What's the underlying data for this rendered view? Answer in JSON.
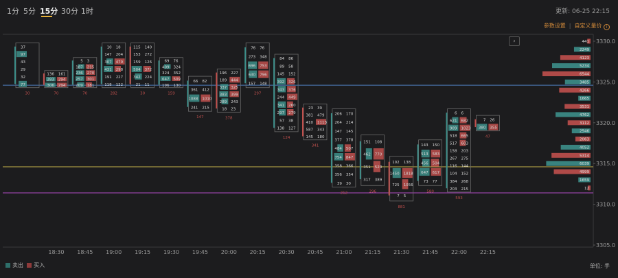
{
  "timeframes": [
    {
      "label": "1分",
      "active": false
    },
    {
      "label": "5分",
      "active": false
    },
    {
      "label": "15分",
      "active": true
    },
    {
      "label": "30分",
      "active": false
    },
    {
      "label": "1时",
      "active": false
    }
  ],
  "update_label": "更新: 06-25 22:15",
  "settings_link": "参数设置",
  "custom_volume_link": "自定义量价",
  "legend": {
    "sell_label": "卖出",
    "buy_label": "买入",
    "sell_color": "#2e6f6a",
    "buy_color": "#8e3a3a"
  },
  "unit_label": "单位: 手",
  "colors": {
    "sell": "#3d8f8a",
    "buy": "#c0504d",
    "blue_line": "#4f7fc0",
    "yellow_line": "#c6b54a",
    "purple_line": "#b24bc6"
  },
  "chart_data": {
    "type": "footprint",
    "title": "",
    "xlabel": "",
    "ylabel": "",
    "ylim": [
      3305.0,
      3330.0
    ],
    "y_ticks": [
      "3330.0",
      "3325.0",
      "3320.0",
      "3315.0",
      "3310.0",
      "3305.0"
    ],
    "x_ticks": [
      "18:30",
      "18:45",
      "19:00",
      "19:15",
      "19:30",
      "19:45",
      "20:00",
      "20:15",
      "20:30",
      "20:45",
      "21:00",
      "21:15",
      "21:30",
      "21:45",
      "22:00",
      "22:15"
    ],
    "horizontal_lines": [
      {
        "price": 3324.6,
        "color": "blue"
      },
      {
        "price": 3314.6,
        "color": "yellow"
      },
      {
        "price": 3311.4,
        "color": "purple"
      }
    ],
    "bars": [
      {
        "time": "18:15",
        "delta": "30",
        "top": 3329.8,
        "bottom": 3324.3,
        "rows": [
          [
            "37",
            ""
          ],
          [
            "97",
            ""
          ],
          [
            "43",
            ""
          ],
          [
            "29",
            ""
          ],
          [
            "32",
            ""
          ],
          [
            "77",
            ""
          ]
        ]
      },
      {
        "time": "18:30",
        "delta": "70",
        "top": 3326.4,
        "bottom": 3324.3,
        "rows": [
          [
            "136",
            "161"
          ],
          [
            "283",
            "294"
          ],
          [
            "306",
            "294"
          ]
        ]
      },
      {
        "time": "18:45",
        "delta": "70",
        "top": 3328.0,
        "bottom": 3324.3,
        "rows": [
          [
            "5",
            "3"
          ],
          [
            "187",
            "215"
          ],
          [
            "236",
            "270"
          ],
          [
            "257",
            "301"
          ],
          [
            "209",
            "181"
          ]
        ]
      },
      {
        "time": "19:00",
        "delta": "282",
        "top": 3329.8,
        "bottom": 3324.3,
        "rows": [
          [
            "10",
            "18"
          ],
          [
            "147",
            "204"
          ],
          [
            "307",
            "479"
          ],
          [
            "431",
            "298"
          ],
          [
            "191",
            "227"
          ],
          [
            "118",
            "122"
          ]
        ]
      },
      {
        "time": "19:15",
        "delta": "30",
        "top": 3329.8,
        "bottom": 3324.3,
        "rows": [
          [
            "115",
            "140"
          ],
          [
            "153",
            "272"
          ],
          [
            "159",
            "126"
          ],
          [
            "504",
            "372"
          ],
          [
            "342",
            "224"
          ],
          [
            "21",
            "11"
          ]
        ]
      },
      {
        "time": "19:30",
        "delta": "159",
        "top": 3328.0,
        "bottom": 3324.3,
        "rows": [
          [
            "69",
            "76"
          ],
          [
            "409",
            "324"
          ],
          [
            "324",
            "352"
          ],
          [
            "647",
            "509"
          ],
          [
            "196",
            "130"
          ]
        ]
      },
      {
        "time": "19:45",
        "delta": "147",
        "top": 3325.7,
        "bottom": 3321.4,
        "rows": [
          [
            "66",
            "82"
          ],
          [
            "361",
            "412"
          ],
          [
            "1088",
            "1010"
          ],
          [
            "241",
            "215"
          ]
        ]
      },
      {
        "time": "20:00",
        "delta": "378",
        "top": 3326.6,
        "bottom": 3321.3,
        "rows": [
          [
            "196",
            "227"
          ],
          [
            "189",
            "444"
          ],
          [
            "337",
            "325"
          ],
          [
            "383",
            "399"
          ],
          [
            "289",
            "243"
          ],
          [
            "18",
            "23"
          ]
        ]
      },
      {
        "time": "20:15",
        "delta": "297",
        "top": 3329.8,
        "bottom": 3324.3,
        "rows": [
          [
            "76",
            "76"
          ],
          [
            "273",
            "348"
          ],
          [
            "696",
            "753"
          ],
          [
            "630",
            "796"
          ],
          [
            "157",
            "148"
          ]
        ]
      },
      {
        "time": "20:30",
        "delta": "124",
        "top": 3328.4,
        "bottom": 3318.9,
        "rows": [
          [
            "84",
            "86"
          ],
          [
            "89",
            "58"
          ],
          [
            "145",
            "152"
          ],
          [
            "392",
            "326"
          ],
          [
            "343",
            "376"
          ],
          [
            "244",
            "449"
          ],
          [
            "341",
            "260"
          ],
          [
            "297",
            "279"
          ],
          [
            "57",
            "38"
          ],
          [
            "138",
            "127"
          ]
        ]
      },
      {
        "time": "20:45",
        "delta": "341",
        "top": 3322.3,
        "bottom": 3317.9,
        "rows": [
          [
            "23",
            "39"
          ],
          [
            "381",
            "479"
          ],
          [
            "410",
            "1113"
          ],
          [
            "587",
            "343"
          ],
          [
            "145",
            "180"
          ]
        ]
      },
      {
        "time": "21:00",
        "delta": "212",
        "top": 3321.7,
        "bottom": 3312.1,
        "rows": [
          [
            "206",
            "170"
          ],
          [
            "204",
            "214"
          ],
          [
            "147",
            "145"
          ],
          [
            "377",
            "378"
          ],
          [
            "484",
            "507"
          ],
          [
            "754",
            "847"
          ],
          [
            "358",
            "366"
          ],
          [
            "356",
            "354"
          ],
          [
            "39",
            "30"
          ]
        ]
      },
      {
        "time": "21:15",
        "delta": "296",
        "top": 3318.5,
        "bottom": 3312.3,
        "rows": [
          [
            "151",
            "108"
          ],
          [
            "462",
            "770"
          ],
          [
            "351",
            "523"
          ],
          [
            "317",
            "389"
          ]
        ]
      },
      {
        "time": "21:30",
        "delta": "881",
        "top": 3315.9,
        "bottom": 3310.4,
        "rows": [
          [
            "102",
            "138"
          ],
          [
            "1450",
            "1818"
          ],
          [
            "725",
            "1056"
          ],
          [
            "7",
            "5"
          ]
        ]
      },
      {
        "time": "21:45",
        "delta": "580",
        "top": 3317.9,
        "bottom": 3312.3,
        "rows": [
          [
            "143",
            "150"
          ],
          [
            "513",
            "583"
          ],
          [
            "456",
            "504"
          ],
          [
            "647",
            "617"
          ],
          [
            "73",
            "77"
          ]
        ]
      },
      {
        "time": "22:00",
        "delta": "593",
        "top": 3321.7,
        "bottom": 3311.5,
        "rows": [
          [
            "6",
            "6"
          ],
          [
            "621",
            "682"
          ],
          [
            "989",
            "1023"
          ],
          [
            "518",
            "665"
          ],
          [
            "517",
            "603"
          ],
          [
            "158",
            "203"
          ],
          [
            "267",
            "275"
          ],
          [
            "116",
            "144"
          ],
          [
            "104",
            "152"
          ],
          [
            "384",
            "268"
          ],
          [
            "203",
            "215"
          ]
        ]
      },
      {
        "time": "22:15",
        "delta": "47",
        "top": 3320.9,
        "bottom": 3319.0,
        "rows": [
          [
            "7",
            "26"
          ],
          [
            "380",
            "355"
          ]
        ]
      }
    ],
    "volume_profile": [
      {
        "price": 3330.0,
        "value": "441"
      },
      {
        "price": 3329.0,
        "value": "2249"
      },
      {
        "price": 3328.0,
        "value": "4123"
      },
      {
        "price": 3327.0,
        "value": "5234"
      },
      {
        "price": 3326.0,
        "value": "6544"
      },
      {
        "price": 3325.0,
        "value": "3485"
      },
      {
        "price": 3324.0,
        "value": "4266"
      },
      {
        "price": 3323.0,
        "value": "1665"
      },
      {
        "price": 3322.0,
        "value": "3531"
      },
      {
        "price": 3321.0,
        "value": "4762"
      },
      {
        "price": 3320.0,
        "value": "3112"
      },
      {
        "price": 3319.0,
        "value": "2546"
      },
      {
        "price": 3318.0,
        "value": "2063"
      },
      {
        "price": 3317.0,
        "value": "4052"
      },
      {
        "price": 3316.0,
        "value": "5314"
      },
      {
        "price": 3315.0,
        "value": "6039"
      },
      {
        "price": 3314.0,
        "value": "4999"
      },
      {
        "price": 3313.0,
        "value": "1659"
      },
      {
        "price": 3312.0,
        "value": "12"
      }
    ]
  }
}
